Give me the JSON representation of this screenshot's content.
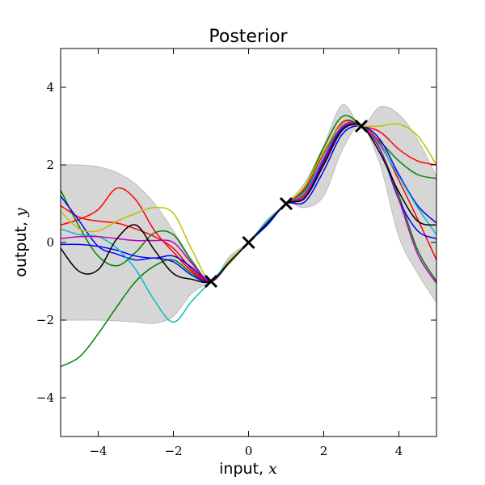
{
  "chart_data": {
    "type": "line",
    "title": "Posterior",
    "xlabel_prefix": "input, ",
    "xlabel_var": "x",
    "ylabel_prefix": "output, ",
    "ylabel_var": "y",
    "xlim": [
      -5,
      5
    ],
    "ylim": [
      -5,
      5
    ],
    "grid": false,
    "xticks": [
      {
        "v": -4,
        "label": "−4"
      },
      {
        "v": -2,
        "label": "−2"
      },
      {
        "v": 0,
        "label": "0"
      },
      {
        "v": 2,
        "label": "2"
      },
      {
        "v": 4,
        "label": "4"
      }
    ],
    "yticks": [
      {
        "v": -4,
        "label": "−4"
      },
      {
        "v": -2,
        "label": "−2"
      },
      {
        "v": 0,
        "label": "0"
      },
      {
        "v": 2,
        "label": "2"
      },
      {
        "v": 4,
        "label": "4"
      }
    ],
    "observations": {
      "x": [
        -1,
        0,
        1,
        3
      ],
      "y": [
        -1,
        0,
        1,
        3
      ],
      "color": "#000000"
    },
    "confidence_band": {
      "color": "#d6d6d6",
      "x": [
        -5,
        -4.5,
        -4,
        -3.5,
        -3,
        -2.5,
        -2,
        -1.5,
        -1,
        -0.5,
        0,
        0.5,
        1,
        1.5,
        2,
        2.5,
        3,
        3.5,
        4,
        4.5,
        5
      ],
      "upper": [
        2.0,
        2.0,
        1.95,
        1.8,
        1.5,
        1.0,
        0.3,
        -0.45,
        -1.0,
        -0.35,
        0.0,
        0.6,
        1.0,
        1.55,
        2.5,
        3.55,
        3.0,
        3.5,
        3.3,
        2.65,
        1.7
      ],
      "lower": [
        -2.0,
        -2.0,
        -2.0,
        -2.02,
        -2.05,
        -2.08,
        -1.9,
        -1.3,
        -1.0,
        -0.55,
        0.0,
        0.45,
        1.0,
        0.9,
        1.2,
        2.4,
        3.0,
        2.0,
        0.15,
        -0.8,
        -1.55
      ]
    },
    "x": [
      -5,
      -4.5,
      -4,
      -3.5,
      -3,
      -2.5,
      -2,
      -1.5,
      -1,
      -0.5,
      0,
      0.5,
      1,
      1.5,
      2,
      2.5,
      3,
      3.5,
      4,
      4.5,
      5
    ],
    "series": [
      {
        "color": "#008000",
        "values": [
          -3.2,
          -2.95,
          -2.35,
          -1.65,
          -1.0,
          -0.6,
          -0.45,
          -0.8,
          -1.0,
          -0.45,
          0.0,
          0.55,
          1.0,
          1.35,
          2.2,
          3.1,
          3.0,
          2.6,
          2.1,
          1.75,
          1.65
        ]
      },
      {
        "color": "#008000",
        "values": [
          1.35,
          0.4,
          -0.35,
          -0.6,
          -0.25,
          0.25,
          0.2,
          -0.5,
          -1.0,
          -0.5,
          0.0,
          0.55,
          1.0,
          1.45,
          2.45,
          3.25,
          3.0,
          2.4,
          1.2,
          -0.2,
          -1.0
        ]
      },
      {
        "color": "#ff0000",
        "values": [
          0.45,
          0.6,
          0.85,
          1.4,
          1.1,
          0.3,
          -0.25,
          -0.75,
          -1.0,
          -0.5,
          0.0,
          0.55,
          1.0,
          1.4,
          2.3,
          3.1,
          3.0,
          2.85,
          2.4,
          2.1,
          2.0
        ]
      },
      {
        "color": "#ff0000",
        "values": [
          0.95,
          0.65,
          0.55,
          0.5,
          0.35,
          0.15,
          -0.15,
          -0.7,
          -1.0,
          -0.5,
          0.0,
          0.5,
          1.0,
          1.2,
          2.05,
          2.9,
          3.0,
          2.55,
          1.6,
          0.6,
          -0.45
        ]
      },
      {
        "color": "#0000ff",
        "values": [
          1.2,
          0.55,
          -0.1,
          -0.3,
          -0.45,
          -0.4,
          -0.5,
          -0.85,
          -1.0,
          -0.5,
          0.0,
          0.5,
          1.0,
          1.05,
          1.85,
          2.8,
          3.0,
          2.65,
          1.75,
          0.95,
          0.5
        ]
      },
      {
        "color": "#0000ff",
        "values": [
          -0.05,
          -0.05,
          -0.1,
          -0.2,
          -0.35,
          -0.4,
          -0.35,
          -0.65,
          -1.0,
          -0.5,
          0.0,
          0.45,
          1.0,
          1.15,
          2.1,
          2.95,
          3.0,
          2.4,
          1.1,
          0.3,
          0.1
        ]
      },
      {
        "color": "#bfbf00",
        "values": [
          0.8,
          0.35,
          0.3,
          0.55,
          0.75,
          0.9,
          0.75,
          -0.2,
          -1.0,
          -0.45,
          0.0,
          0.55,
          1.0,
          1.45,
          2.35,
          3.05,
          3.0,
          3.0,
          3.05,
          2.75,
          2.0
        ]
      },
      {
        "color": "#00bfbf",
        "values": [
          0.35,
          0.2,
          0.15,
          -0.15,
          -0.7,
          -1.5,
          -2.05,
          -1.5,
          -1.0,
          -0.5,
          0.0,
          0.55,
          1.0,
          1.3,
          2.2,
          3.0,
          3.0,
          2.5,
          1.7,
          0.9,
          0.2
        ]
      },
      {
        "color": "#bf00bf",
        "values": [
          0.1,
          0.15,
          0.15,
          0.1,
          0.05,
          0.05,
          0.0,
          -0.55,
          -1.0,
          -0.5,
          0.0,
          0.5,
          1.0,
          1.25,
          2.15,
          3.0,
          3.0,
          2.4,
          1.1,
          -0.3,
          -1.05
        ]
      },
      {
        "color": "#000000",
        "values": [
          -0.15,
          -0.75,
          -0.7,
          0.1,
          0.45,
          -0.2,
          -0.8,
          -0.95,
          -1.0,
          -0.5,
          0.0,
          0.5,
          1.0,
          1.15,
          2.0,
          2.9,
          3.0,
          2.3,
          1.3,
          0.55,
          0.45
        ]
      }
    ]
  }
}
